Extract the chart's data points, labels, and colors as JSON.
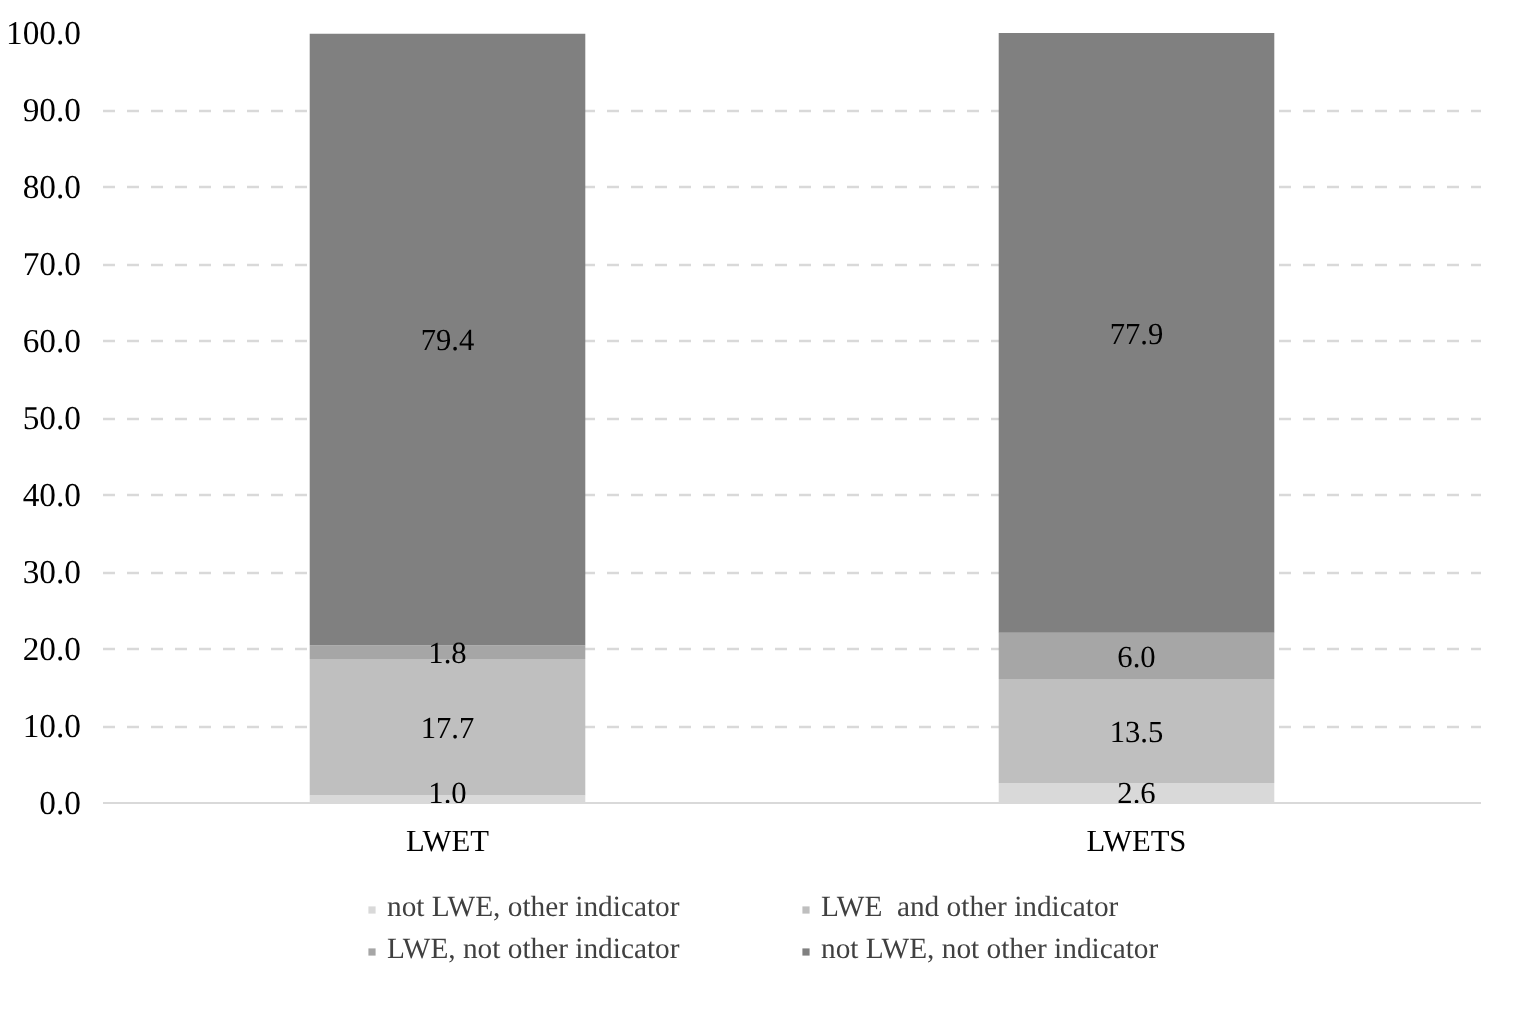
{
  "chart_data": {
    "type": "bar",
    "stacked": true,
    "categories": [
      "LWET",
      "LWETS"
    ],
    "series": [
      {
        "name": "not LWE, other indicator",
        "color": "#d9d9d9",
        "values": [
          1.0,
          2.6
        ],
        "value_labels": [
          "1.0",
          "2.6"
        ]
      },
      {
        "name": "LWE  and other indicator",
        "color": "#bfbfbf",
        "values": [
          17.7,
          13.5
        ],
        "value_labels": [
          "17.7",
          "13.5"
        ]
      },
      {
        "name": "LWE, not other indicator",
        "color": "#a6a6a6",
        "values": [
          1.8,
          6.0
        ],
        "value_labels": [
          "1.8",
          "6.0"
        ]
      },
      {
        "name": "not LWE, not other indicator",
        "color": "#808080",
        "values": [
          79.4,
          77.9
        ],
        "value_labels": [
          "79.4",
          "77.9"
        ]
      }
    ],
    "ylim": [
      0,
      100
    ],
    "yticks": [
      {
        "value": 0,
        "label": "0.0"
      },
      {
        "value": 10,
        "label": "10.0"
      },
      {
        "value": 20,
        "label": "20.0"
      },
      {
        "value": 30,
        "label": "30.0"
      },
      {
        "value": 40,
        "label": "40.0"
      },
      {
        "value": 50,
        "label": "50.0"
      },
      {
        "value": 60,
        "label": "60.0"
      },
      {
        "value": 70,
        "label": "70.0"
      },
      {
        "value": 80,
        "label": "80.0"
      },
      {
        "value": 90,
        "label": "90.0"
      },
      {
        "value": 100,
        "label": "100.0"
      }
    ],
    "grid": "y",
    "legend": "bottom",
    "data_labels": true
  }
}
